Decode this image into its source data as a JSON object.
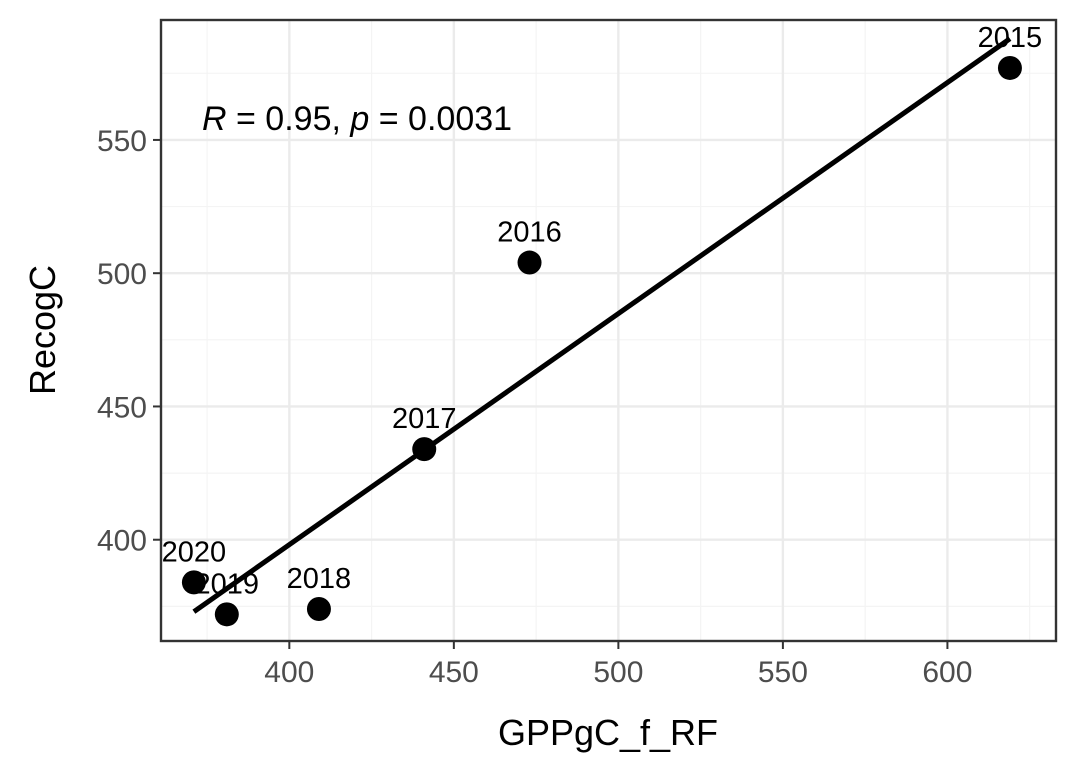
{
  "chart_data": {
    "type": "scatter",
    "xlabel": "GPPgC_f_RF",
    "ylabel": "RecogC",
    "xlim": [
      361,
      633
    ],
    "ylim": [
      362,
      595
    ],
    "x_ticks": [
      400,
      450,
      500,
      550,
      600
    ],
    "y_ticks": [
      400,
      450,
      500,
      550
    ],
    "x_tick_labels": [
      "400",
      "450",
      "500",
      "550",
      "600"
    ],
    "y_tick_labels": [
      "400",
      "450",
      "500",
      "550"
    ],
    "grid": true,
    "points": [
      {
        "label": "2015",
        "x": 619,
        "y": 577
      },
      {
        "label": "2016",
        "x": 473,
        "y": 504
      },
      {
        "label": "2017",
        "x": 441,
        "y": 434
      },
      {
        "label": "2018",
        "x": 409,
        "y": 374
      },
      {
        "label": "2019",
        "x": 381,
        "y": 372
      },
      {
        "label": "2020",
        "x": 371,
        "y": 384
      }
    ],
    "fit_line": {
      "x": [
        371,
        619
      ],
      "y": [
        373,
        588
      ]
    },
    "annotation": {
      "r_symbol": "R",
      "r_text": " = 0.95, ",
      "p_symbol": "p",
      "p_text": " = 0.0031"
    },
    "colors": {
      "points": "#000000",
      "line": "#000000",
      "panel_border": "#333333",
      "grid": "#ebebeb"
    }
  }
}
